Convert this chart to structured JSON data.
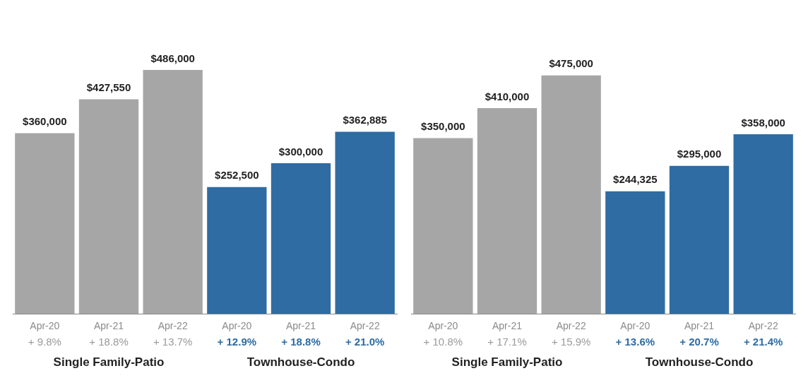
{
  "chart_data": [
    {
      "type": "bar",
      "categories": [
        "Apr-20",
        "Apr-21",
        "Apr-22",
        "Apr-20",
        "Apr-21",
        "Apr-22"
      ],
      "values": [
        360000,
        427550,
        486000,
        252500,
        300000,
        362885
      ],
      "colors": [
        "#a6a6a6",
        "#a6a6a6",
        "#a6a6a6",
        "#2e6ca3",
        "#2e6ca3",
        "#2e6ca3"
      ],
      "value_labels": [
        "$360,000",
        "$427,550",
        "$486,000",
        "$252,500",
        "$300,000",
        "$362,885"
      ],
      "annotations": [
        "+ 9.8%",
        "+ 18.8%",
        "+ 13.7%",
        "+ 12.9%",
        "+ 18.8%",
        "+ 21.0%",
        "Single Family-Patio",
        "Townhouse-Condo"
      ],
      "legend": false,
      "grid": false
    },
    {
      "type": "bar",
      "categories": [
        "Apr-20",
        "Apr-21",
        "Apr-22",
        "Apr-20",
        "Apr-21",
        "Apr-22"
      ],
      "values": [
        350000,
        410000,
        475000,
        244325,
        295000,
        358000
      ],
      "colors": [
        "#a6a6a6",
        "#a6a6a6",
        "#a6a6a6",
        "#2e6ca3",
        "#2e6ca3",
        "#2e6ca3"
      ],
      "value_labels": [
        "$350,000",
        "$410,000",
        "$475,000",
        "$244,325",
        "$295,000",
        "$358,000"
      ],
      "annotations": [
        "+ 10.8%",
        "+ 17.1%",
        "+ 15.9%",
        "+ 13.6%",
        "+ 20.7%",
        "+ 21.4%",
        "Single Family-Patio",
        "Townhouse-Condo"
      ],
      "legend": false,
      "grid": false
    }
  ]
}
